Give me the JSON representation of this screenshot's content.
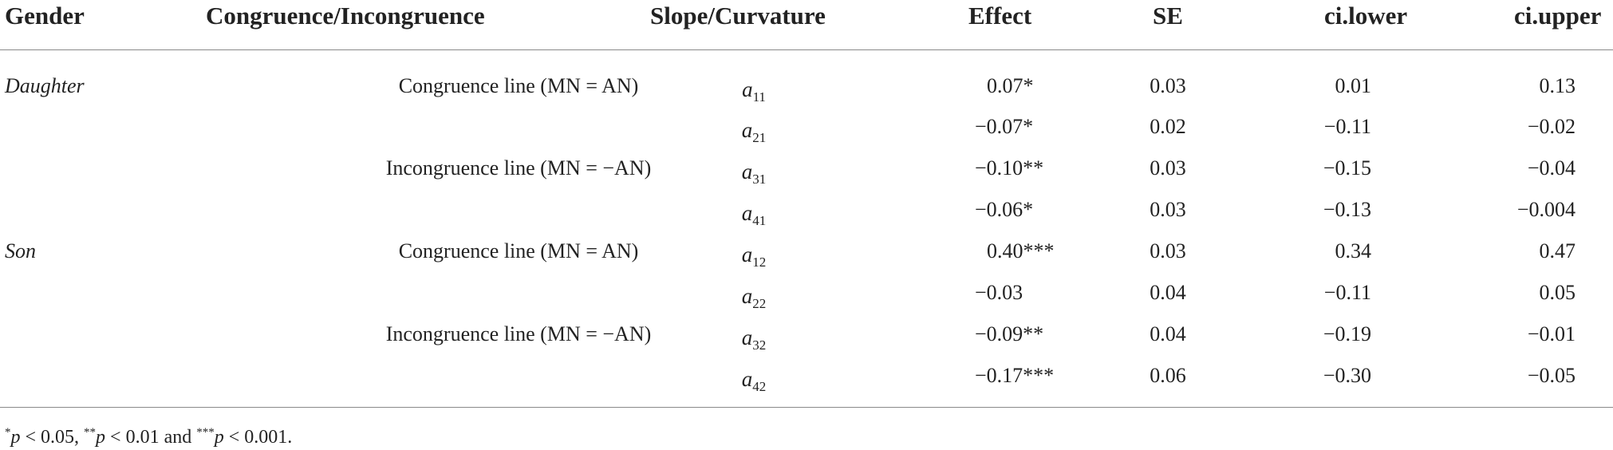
{
  "table": {
    "headers": {
      "gender": "Gender",
      "congruence": "Congruence/Incongruence",
      "slope": "Slope/Curvature",
      "effect": "Effect",
      "se": "SE",
      "ci_lower": "ci.lower",
      "ci_upper": "ci.upper"
    },
    "rows": [
      {
        "gender": "Daughter",
        "line": "Congruence line (MN = AN)",
        "param": "a",
        "sub": "11",
        "effect": "0.07*",
        "se": "0.03",
        "ci_lower": "0.01",
        "ci_upper": "0.13"
      },
      {
        "gender": "",
        "line": "",
        "param": "a",
        "sub": "21",
        "effect": "−0.07*",
        "se": "0.02",
        "ci_lower": "−0.11",
        "ci_upper": "−0.02"
      },
      {
        "gender": "",
        "line": "Incongruence line (MN = −AN)",
        "param": "a",
        "sub": "31",
        "effect": "−0.10**",
        "se": "0.03",
        "ci_lower": "−0.15",
        "ci_upper": "−0.04"
      },
      {
        "gender": "",
        "line": "",
        "param": "a",
        "sub": "41",
        "effect": "−0.06*",
        "se": "0.03",
        "ci_lower": "−0.13",
        "ci_upper": "−0.004"
      },
      {
        "gender": "Son",
        "line": "Congruence line (MN = AN)",
        "param": "a",
        "sub": "12",
        "effect": "0.40***",
        "se": "0.03",
        "ci_lower": "0.34",
        "ci_upper": "0.47"
      },
      {
        "gender": "",
        "line": "",
        "param": "a",
        "sub": "22",
        "effect": "−0.03",
        "se": "0.04",
        "ci_lower": "−0.11",
        "ci_upper": "0.05"
      },
      {
        "gender": "",
        "line": "Incongruence line (MN = −AN)",
        "param": "a",
        "sub": "32",
        "effect": "−0.09**",
        "se": "0.04",
        "ci_lower": "−0.19",
        "ci_upper": "−0.01"
      },
      {
        "gender": "",
        "line": "",
        "param": "a",
        "sub": "42",
        "effect": "−0.17***",
        "se": "0.06",
        "ci_lower": "−0.30",
        "ci_upper": "−0.05"
      }
    ]
  },
  "footnote": {
    "m1": "*",
    "p1": "p",
    "t1": " < 0.05, ",
    "m2": "**",
    "p2": "p",
    "t2": " < 0.01 and ",
    "m3": "***",
    "p3": "p",
    "t3": " < 0.001."
  }
}
